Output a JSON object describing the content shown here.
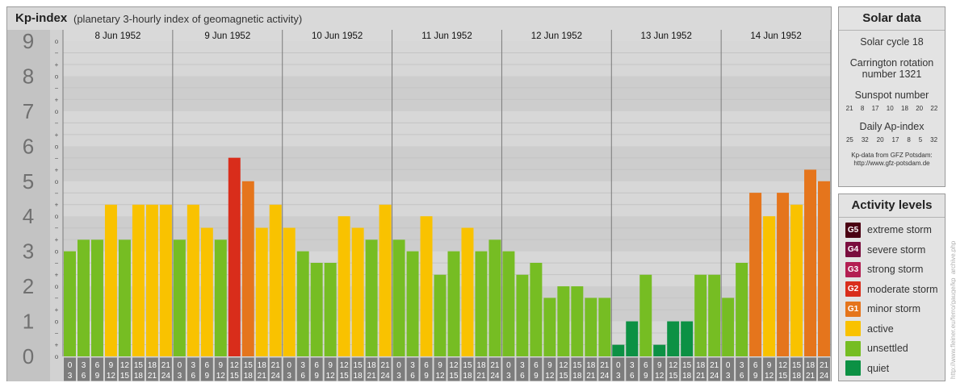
{
  "header": {
    "title": "Kp-index",
    "subtitle": "(planetary 3-hourly index of geomagnetic activity)"
  },
  "chart_data": {
    "type": "bar",
    "title": "Kp-index",
    "subtitle": "(planetary 3-hourly index of geomagnetic activity)",
    "ylim": [
      0,
      9
    ],
    "y_ticks": [
      "0",
      "1",
      "2",
      "3",
      "4",
      "5",
      "6",
      "7",
      "8",
      "9"
    ],
    "minor_tick_labels": [
      "o",
      "+",
      "−"
    ],
    "days": [
      {
        "date": "8 Jun 1952",
        "values": [
          3.0,
          3.33,
          3.33,
          4.33,
          3.33,
          4.33,
          4.33,
          4.33
        ]
      },
      {
        "date": "9 Jun 1952",
        "values": [
          3.33,
          4.33,
          3.67,
          3.33,
          5.67,
          5.0,
          3.67,
          4.33
        ]
      },
      {
        "date": "10 Jun 1952",
        "values": [
          3.67,
          3.0,
          2.67,
          2.67,
          4.0,
          3.67,
          3.33,
          4.33
        ]
      },
      {
        "date": "11 Jun 1952",
        "values": [
          3.33,
          3.0,
          4.0,
          2.33,
          3.0,
          3.67,
          3.0,
          3.33
        ]
      },
      {
        "date": "12 Jun 1952",
        "values": [
          3.0,
          2.33,
          2.67,
          1.67,
          2.0,
          2.0,
          1.67,
          1.67
        ]
      },
      {
        "date": "13 Jun 1952",
        "values": [
          0.33,
          1.0,
          2.33,
          0.33,
          1.0,
          1.0,
          2.33,
          2.33
        ]
      },
      {
        "date": "14 Jun 1952",
        "values": [
          1.67,
          2.67,
          4.67,
          4.0,
          4.67,
          4.33,
          5.33,
          5.0
        ]
      }
    ],
    "hour_starts": [
      "0",
      "3",
      "6",
      "9",
      "12",
      "15",
      "18",
      "21"
    ],
    "hour_ends": [
      "3",
      "6",
      "9",
      "12",
      "15",
      "18",
      "21",
      "24"
    ],
    "colors": {
      "quiet": "#0c9144",
      "unsettled": "#76bd23",
      "active": "#f9c200",
      "minor": "#e5751c",
      "moderate": "#d92d1b"
    }
  },
  "solar": {
    "title": "Solar data",
    "cycle": "Solar cycle 18",
    "carrington_line1": "Carrington rotation",
    "carrington_line2": "number 1321",
    "sunspot_label": "Sunspot number",
    "sunspot_values": [
      "21",
      "8",
      "17",
      "10",
      "18",
      "20",
      "22"
    ],
    "ap_label": "Daily Ap-index",
    "ap_values": [
      "25",
      "32",
      "20",
      "17",
      "8",
      "5",
      "32"
    ],
    "credit_line1": "Kp-data from GFZ Potsdam:",
    "credit_line2": "http://www.gfz-potsdam.de"
  },
  "levels": {
    "title": "Activity levels",
    "items": [
      {
        "code": "G5",
        "label": "extreme storm",
        "color": "#4a0012"
      },
      {
        "code": "G4",
        "label": "severe storm",
        "color": "#7a0d3e"
      },
      {
        "code": "G3",
        "label": "strong storm",
        "color": "#b31e52"
      },
      {
        "code": "G2",
        "label": "moderate storm",
        "color": "#d92d1b"
      },
      {
        "code": "G1",
        "label": "minor storm",
        "color": "#e5751c"
      },
      {
        "code": "",
        "label": "active",
        "color": "#f9c200"
      },
      {
        "code": "",
        "label": "unsettled",
        "color": "#76bd23"
      },
      {
        "code": "",
        "label": "quiet",
        "color": "#0c9144"
      }
    ]
  },
  "vertical_credit": "http://www.fleiner.eu/ferro/gauge/kp_archive.php"
}
